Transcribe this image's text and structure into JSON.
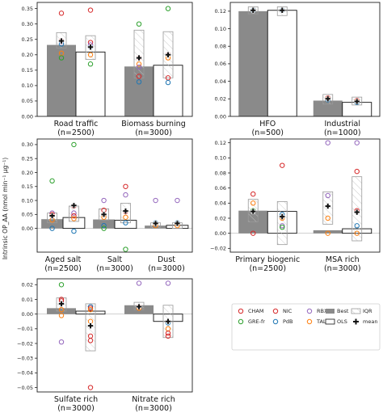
{
  "ylabel": "Intrinsic OP_AA (nmol min⁻¹ µg⁻¹)",
  "legend": {
    "items": [
      {
        "key": "CHAM",
        "kind": "marker",
        "color": "#d62728"
      },
      {
        "key": "GRE-fr",
        "kind": "marker",
        "color": "#2ca02c"
      },
      {
        "key": "NIC",
        "kind": "marker",
        "color": "#d62728"
      },
      {
        "key": "PdB",
        "kind": "marker",
        "color": "#1f77b4"
      },
      {
        "key": "RBX",
        "kind": "marker",
        "color": "#9467bd"
      },
      {
        "key": "TAL",
        "kind": "marker",
        "color": "#ff7f0e"
      },
      {
        "key": "Best",
        "kind": "best"
      },
      {
        "key": "OLS",
        "kind": "ols"
      },
      {
        "key": "IQR",
        "kind": "iqr"
      },
      {
        "key": "mean",
        "kind": "mean"
      }
    ]
  },
  "chart_data": [
    {
      "type": "bar",
      "ylim": [
        0,
        0.37
      ],
      "yticks": [
        "0.00",
        "0.05",
        "0.10",
        "0.15",
        "0.20",
        "0.25",
        "0.30",
        "0.35"
      ],
      "yvals": [
        0,
        0.05,
        0.1,
        0.15,
        0.2,
        0.25,
        0.3,
        0.35
      ],
      "categories": [
        {
          "name": "Road traffic",
          "n": "(n=2500)",
          "best": 0.232,
          "ols": 0.209,
          "best_iqr": [
            0.222,
            0.272
          ],
          "best_mean": 0.245,
          "best_pts": [
            {
              "s": "CHAM",
              "v": 0.335
            },
            {
              "s": "NIC",
              "v": 0.245
            },
            {
              "s": "RBX",
              "v": 0.243
            },
            {
              "s": "PdB",
              "v": 0.235
            },
            {
              "s": "TAL",
              "v": 0.205
            },
            {
              "s": "GRE-fr",
              "v": 0.19
            }
          ],
          "ols_iqr": [
            0.185,
            0.262
          ],
          "ols_mean": 0.225,
          "ols_pts": [
            {
              "s": "CHAM",
              "v": 0.345
            },
            {
              "s": "NIC",
              "v": 0.24
            },
            {
              "s": "RBX",
              "v": 0.232
            },
            {
              "s": "PdB",
              "v": 0.225
            },
            {
              "s": "TAL",
              "v": 0.2
            },
            {
              "s": "GRE-fr",
              "v": 0.17
            }
          ]
        },
        {
          "name": "Biomass burning",
          "n": "(n=3000)",
          "best": 0.162,
          "ols": 0.166,
          "best_iqr": [
            0.125,
            0.28
          ],
          "best_mean": 0.19,
          "best_pts": [
            {
              "s": "GRE-fr",
              "v": 0.3
            },
            {
              "s": "NIC",
              "v": 0.19
            },
            {
              "s": "TAL",
              "v": 0.17
            },
            {
              "s": "RBX",
              "v": 0.16
            },
            {
              "s": "CHAM",
              "v": 0.13
            },
            {
              "s": "PdB",
              "v": 0.112
            }
          ],
          "ols_iqr": [
            0.125,
            0.275
          ],
          "ols_mean": 0.2,
          "ols_pts": [
            {
              "s": "GRE-fr",
              "v": 0.35
            },
            {
              "s": "RBX",
              "v": 0.2
            },
            {
              "s": "NIC",
              "v": 0.2
            },
            {
              "s": "TAL",
              "v": 0.19
            },
            {
              "s": "CHAM",
              "v": 0.125
            },
            {
              "s": "PdB",
              "v": 0.11
            }
          ]
        }
      ]
    },
    {
      "type": "bar",
      "ylim": [
        0,
        0.13
      ],
      "yticks": [
        "0.00",
        "0.02",
        "0.04",
        "0.06",
        "0.08",
        "0.10",
        "0.12"
      ],
      "yvals": [
        0,
        0.02,
        0.04,
        0.06,
        0.08,
        0.1,
        0.12
      ],
      "categories": [
        {
          "name": "HFO",
          "n": "(n=500)",
          "best": 0.12,
          "ols": 0.121,
          "best_iqr": [
            0.117,
            0.125
          ],
          "best_mean": 0.121,
          "best_pts": [
            {
              "s": "PdB",
              "v": 0.121
            }
          ],
          "ols_iqr": [
            0.115,
            0.125
          ],
          "ols_mean": 0.121,
          "ols_pts": [
            {
              "s": "PdB",
              "v": 0.121
            }
          ]
        },
        {
          "name": "Industrial",
          "n": "(n=1000)",
          "best": 0.018,
          "ols": 0.016,
          "best_iqr": [
            0.014,
            0.025
          ],
          "best_mean": 0.02,
          "best_pts": [
            {
              "s": "CHAM",
              "v": 0.021
            },
            {
              "s": "TAL",
              "v": 0.02
            },
            {
              "s": "PdB",
              "v": 0.019
            }
          ],
          "ols_iqr": [
            0.013,
            0.022
          ],
          "ols_mean": 0.017,
          "ols_pts": [
            {
              "s": "CHAM",
              "v": 0.018
            },
            {
              "s": "TAL",
              "v": 0.017
            },
            {
              "s": "PdB",
              "v": 0.016
            }
          ]
        }
      ]
    },
    {
      "type": "bar",
      "ylim": [
        -0.085,
        0.32
      ],
      "yticks": [
        "0.00",
        "0.05",
        "0.10",
        "0.15",
        "0.20",
        "0.25",
        "0.30"
      ],
      "yvals": [
        0,
        0.05,
        0.1,
        0.15,
        0.2,
        0.25,
        0.3
      ],
      "categories": [
        {
          "name": "Aged salt",
          "n": "(n=2500)",
          "best": 0.033,
          "ols": 0.039,
          "best_iqr": [
            0.02,
            0.055
          ],
          "best_mean": 0.045,
          "best_pts": [
            {
              "s": "GRE-fr",
              "v": 0.17
            },
            {
              "s": "RBX",
              "v": 0.055
            },
            {
              "s": "CHAM",
              "v": 0.05
            },
            {
              "s": "NIC",
              "v": 0.045
            },
            {
              "s": "TAL",
              "v": 0.03
            },
            {
              "s": "PdB",
              "v": 0.0
            }
          ],
          "ols_iqr": [
            0.025,
            0.08
          ],
          "ols_mean": 0.082,
          "ols_pts": [
            {
              "s": "GRE-fr",
              "v": 0.3
            },
            {
              "s": "CHAM",
              "v": 0.08
            },
            {
              "s": "RBX",
              "v": 0.055
            },
            {
              "s": "NIC",
              "v": 0.045
            },
            {
              "s": "TAL",
              "v": 0.035
            },
            {
              "s": "PdB",
              "v": -0.01
            }
          ]
        },
        {
          "name": "Salt",
          "n": "(n=3000)",
          "best": 0.032,
          "ols": 0.029,
          "best_iqr": [
            0.03,
            0.07
          ],
          "best_mean": 0.05,
          "best_pts": [
            {
              "s": "RBX",
              "v": 0.1
            },
            {
              "s": "CHAM",
              "v": 0.065
            },
            {
              "s": "NIC",
              "v": 0.05
            },
            {
              "s": "TAL",
              "v": 0.04
            },
            {
              "s": "PdB",
              "v": 0.01
            },
            {
              "s": "GRE-fr",
              "v": 0.0
            }
          ],
          "ols_iqr": [
            0.02,
            0.09
          ],
          "ols_mean": 0.062,
          "ols_pts": [
            {
              "s": "CHAM",
              "v": 0.15
            },
            {
              "s": "RBX",
              "v": 0.12
            },
            {
              "s": "NIC",
              "v": 0.06
            },
            {
              "s": "TAL",
              "v": 0.04
            },
            {
              "s": "PdB",
              "v": 0.02
            },
            {
              "s": "GRE-fr",
              "v": -0.075
            }
          ]
        },
        {
          "name": "Dust",
          "n": "(n=3000)",
          "best": 0.01,
          "ols": 0.011,
          "best_iqr": [
            0.0,
            0.02
          ],
          "best_mean": 0.018,
          "best_pts": [
            {
              "s": "RBX",
              "v": 0.1
            },
            {
              "s": "PdB",
              "v": 0.02
            },
            {
              "s": "TAL",
              "v": 0.01
            }
          ],
          "ols_iqr": [
            0.0,
            0.02
          ],
          "ols_mean": 0.018,
          "ols_pts": [
            {
              "s": "RBX",
              "v": 0.1
            },
            {
              "s": "PdB",
              "v": 0.02
            },
            {
              "s": "TAL",
              "v": 0.01
            }
          ]
        }
      ]
    },
    {
      "type": "bar",
      "ylim": [
        -0.025,
        0.125
      ],
      "yticks": [
        "−0.02",
        "0.00",
        "0.02",
        "0.04",
        "0.06",
        "0.08",
        "0.10",
        "0.12"
      ],
      "yvals": [
        -0.02,
        0,
        0.02,
        0.04,
        0.06,
        0.08,
        0.1,
        0.12
      ],
      "categories": [
        {
          "name": "Primary biogenic",
          "n": "(n=2500)",
          "best": 0.03,
          "ols": 0.029,
          "best_iqr": [
            0.015,
            0.045
          ],
          "best_mean": 0.029,
          "best_pts": [
            {
              "s": "CHAM",
              "v": 0.052
            },
            {
              "s": "TAL",
              "v": 0.04
            },
            {
              "s": "GRE-fr",
              "v": 0.03
            },
            {
              "s": "CHAM",
              "v": 0.0
            }
          ],
          "ols_iqr": [
            -0.015,
            0.042
          ],
          "ols_mean": 0.022,
          "ols_pts": [
            {
              "s": "CHAM",
              "v": 0.09
            },
            {
              "s": "PdB",
              "v": 0.025
            },
            {
              "s": "TAL",
              "v": 0.02
            },
            {
              "s": "RBX",
              "v": 0.01
            },
            {
              "s": "GRE-fr",
              "v": 0.008
            }
          ]
        },
        {
          "name": "MSA rich",
          "n": "(n=3000)",
          "best": 0.004,
          "ols": 0.006,
          "best_iqr": [
            0.012,
            0.055
          ],
          "best_mean": 0.036,
          "best_pts": [
            {
              "s": "RBX",
              "v": 0.12
            },
            {
              "s": "RBX",
              "v": 0.05
            },
            {
              "s": "TAL",
              "v": 0.02
            },
            {
              "s": "TAL",
              "v": 0.0
            }
          ],
          "ols_iqr": [
            -0.01,
            0.075
          ],
          "ols_mean": 0.028,
          "ols_pts": [
            {
              "s": "RBX",
              "v": 0.12
            },
            {
              "s": "CHAM",
              "v": 0.082
            },
            {
              "s": "NIC",
              "v": 0.03
            },
            {
              "s": "PdB",
              "v": 0.01
            },
            {
              "s": "TAL",
              "v": 0.0
            }
          ]
        }
      ]
    },
    {
      "type": "bar",
      "ylim": [
        -0.053,
        0.024
      ],
      "yticks": [
        "−0.05",
        "−0.04",
        "−0.03",
        "−0.02",
        "−0.01",
        "0.00",
        "0.01",
        "0.02"
      ],
      "yvals": [
        -0.05,
        -0.04,
        -0.03,
        -0.02,
        -0.01,
        0,
        0.01,
        0.02
      ],
      "categories": [
        {
          "name": "Sulfate rich",
          "n": "(n=3000)",
          "best": 0.004,
          "ols": 0.002,
          "best_iqr": [
            0.002,
            0.011
          ],
          "best_mean": 0.007,
          "best_pts": [
            {
              "s": "GRE-fr",
              "v": 0.02
            },
            {
              "s": "NIC",
              "v": 0.01
            },
            {
              "s": "CHAM",
              "v": 0.009
            },
            {
              "s": "PdB",
              "v": 0.007
            },
            {
              "s": "TAL",
              "v": 0.003
            },
            {
              "s": "TAL",
              "v": -0.001
            },
            {
              "s": "RBX",
              "v": -0.019
            }
          ],
          "ols_iqr": [
            -0.025,
            0.007
          ],
          "ols_mean": -0.008,
          "ols_pts": [
            {
              "s": "PdB",
              "v": 0.005
            },
            {
              "s": "NIC",
              "v": 0.004
            },
            {
              "s": "TAL",
              "v": 0.003
            },
            {
              "s": "TAL",
              "v": -0.005
            },
            {
              "s": "NIC",
              "v": -0.015
            },
            {
              "s": "CHAM",
              "v": -0.018
            },
            {
              "s": "CHAM",
              "v": -0.05
            }
          ]
        },
        {
          "name": "Nitrate rich",
          "n": "(n=3000)",
          "best": 0.006,
          "ols": -0.005,
          "best_iqr": [
            0.003,
            0.008
          ],
          "best_mean": 0.005,
          "best_pts": [
            {
              "s": "RBX",
              "v": 0.021
            },
            {
              "s": "NIC",
              "v": 0.005
            },
            {
              "s": "TAL",
              "v": 0.004
            }
          ],
          "ols_iqr": [
            -0.016,
            0.006
          ],
          "ols_mean": -0.005,
          "ols_pts": [
            {
              "s": "RBX",
              "v": 0.021
            },
            {
              "s": "PdB",
              "v": -0.006
            },
            {
              "s": "TAL",
              "v": -0.01
            },
            {
              "s": "NIC",
              "v": -0.013
            },
            {
              "s": "CHAM",
              "v": -0.015
            }
          ]
        }
      ]
    }
  ]
}
